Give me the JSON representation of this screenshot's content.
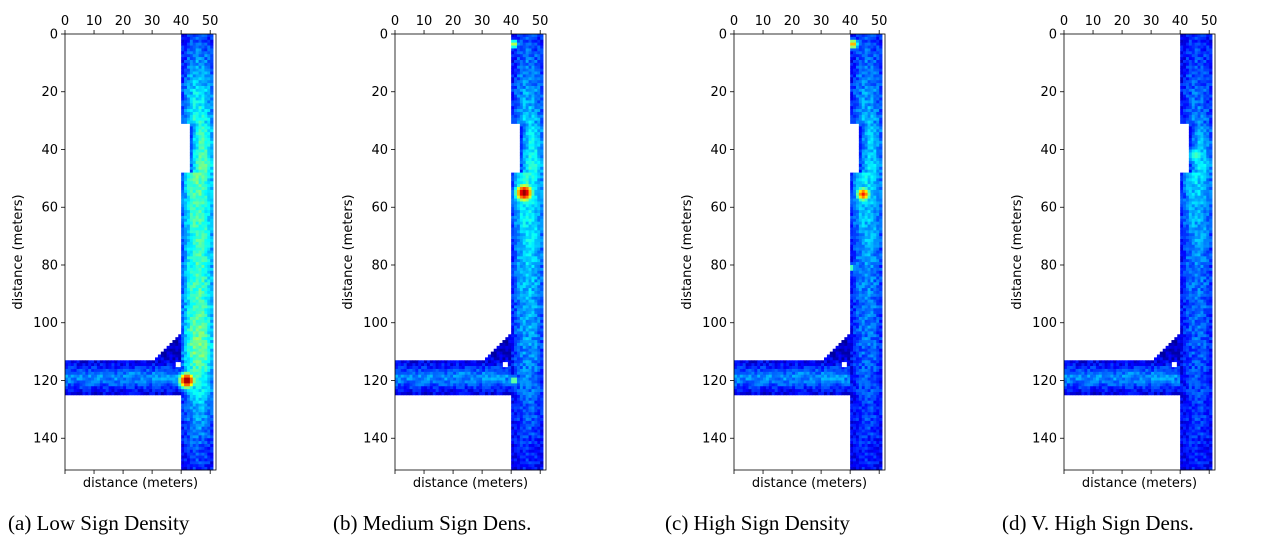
{
  "chart_data": [
    {
      "type": "heatmap",
      "caption": "(a) Low Sign Density",
      "xlabel": "distance (meters)",
      "ylabel": "distance (meters)",
      "xlim": [
        0,
        52
      ],
      "ylim": [
        151,
        0
      ],
      "x_ticks": [
        0,
        10,
        20,
        30,
        40,
        50
      ],
      "y_ticks": [
        0,
        20,
        40,
        60,
        80,
        100,
        120,
        140
      ],
      "colormap": "jet",
      "marker_color": "#ffffff",
      "markers": [
        [
          39,
          114.5
        ]
      ],
      "hotspots": [
        {
          "x": 42,
          "y": 120,
          "value": 1.0,
          "sigma": 2.2
        }
      ],
      "corridor_intensity": [
        {
          "y": 0,
          "value": 0.15
        },
        {
          "y": 20,
          "value": 0.3
        },
        {
          "y": 45,
          "value": 0.42
        },
        {
          "y": 70,
          "value": 0.38
        },
        {
          "y": 95,
          "value": 0.4
        },
        {
          "y": 110,
          "value": 0.45
        },
        {
          "y": 130,
          "value": 0.25
        },
        {
          "y": 151,
          "value": 0.12
        }
      ]
    },
    {
      "type": "heatmap",
      "caption": "(b) Medium Sign Dens.",
      "xlabel": "distance (meters)",
      "ylabel": "distance (meters)",
      "xlim": [
        0,
        52
      ],
      "ylim": [
        151,
        0
      ],
      "x_ticks": [
        0,
        10,
        20,
        30,
        40,
        50
      ],
      "y_ticks": [
        0,
        20,
        40,
        60,
        80,
        100,
        120,
        140
      ],
      "colormap": "jet",
      "marker_color": "#ffffff",
      "markers": [
        [
          38,
          114.5
        ]
      ],
      "hotspots": [
        {
          "x": 44.5,
          "y": 55,
          "value": 1.0,
          "sigma": 2.4
        },
        {
          "x": 41,
          "y": 3.5,
          "value": 0.6,
          "sigma": 1.2
        },
        {
          "x": 41,
          "y": 120,
          "value": 0.55,
          "sigma": 1.2
        }
      ],
      "corridor_intensity": [
        {
          "y": 0,
          "value": 0.15
        },
        {
          "y": 25,
          "value": 0.25
        },
        {
          "y": 45,
          "value": 0.35
        },
        {
          "y": 70,
          "value": 0.3
        },
        {
          "y": 95,
          "value": 0.25
        },
        {
          "y": 120,
          "value": 0.2
        },
        {
          "y": 151,
          "value": 0.1
        }
      ]
    },
    {
      "type": "heatmap",
      "caption": "(c) High Sign Density",
      "xlabel": "distance (meters)",
      "ylabel": "distance (meters)",
      "xlim": [
        0,
        52
      ],
      "ylim": [
        151,
        0
      ],
      "x_ticks": [
        0,
        10,
        20,
        30,
        40,
        50
      ],
      "y_ticks": [
        0,
        20,
        40,
        60,
        80,
        100,
        120,
        140
      ],
      "colormap": "jet",
      "marker_color": "#ffffff",
      "markers": [
        [
          38,
          114.5
        ]
      ],
      "hotspots": [
        {
          "x": 44.5,
          "y": 55.5,
          "value": 0.85,
          "sigma": 1.9
        },
        {
          "x": 41,
          "y": 3.5,
          "value": 0.75,
          "sigma": 1.3
        },
        {
          "x": 40.5,
          "y": 81,
          "value": 0.5,
          "sigma": 1.0
        }
      ],
      "corridor_intensity": [
        {
          "y": 0,
          "value": 0.15
        },
        {
          "y": 30,
          "value": 0.25
        },
        {
          "y": 50,
          "value": 0.3
        },
        {
          "y": 80,
          "value": 0.22
        },
        {
          "y": 110,
          "value": 0.18
        },
        {
          "y": 151,
          "value": 0.1
        }
      ]
    },
    {
      "type": "heatmap",
      "caption": "(d) V. High Sign Dens.",
      "xlabel": "distance (meters)",
      "ylabel": "distance (meters)",
      "xlim": [
        0,
        52
      ],
      "ylim": [
        151,
        0
      ],
      "x_ticks": [
        0,
        10,
        20,
        30,
        40,
        50
      ],
      "y_ticks": [
        0,
        20,
        40,
        60,
        80,
        100,
        120,
        140
      ],
      "colormap": "jet",
      "marker_color": "#ffffff",
      "markers": [
        [
          38,
          114.5
        ]
      ],
      "hotspots": [
        {
          "x": 45.5,
          "y": 42,
          "value": 0.45,
          "sigma": 2.5
        }
      ],
      "corridor_intensity": [
        {
          "y": 0,
          "value": 0.12
        },
        {
          "y": 30,
          "value": 0.2
        },
        {
          "y": 45,
          "value": 0.3
        },
        {
          "y": 80,
          "value": 0.2
        },
        {
          "y": 120,
          "value": 0.15
        },
        {
          "y": 151,
          "value": 0.1
        }
      ]
    }
  ]
}
